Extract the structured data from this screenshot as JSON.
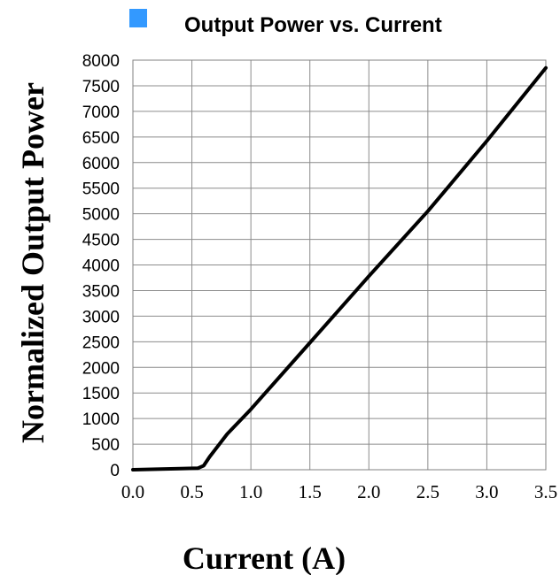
{
  "chart_data": {
    "type": "line",
    "title": "Output Power vs. Current",
    "xlabel": "Current (A)",
    "ylabel": "Normalized Output Power",
    "xlim": [
      0,
      3.5
    ],
    "ylim": [
      0,
      8000
    ],
    "x_ticks": [
      "0.0",
      "0.5",
      "1.0",
      "1.5",
      "2.0",
      "2.5",
      "3.0",
      "3.5"
    ],
    "y_ticks": [
      "0",
      "500",
      "1000",
      "1500",
      "2000",
      "2500",
      "3000",
      "3500",
      "4000",
      "4500",
      "5000",
      "5500",
      "6000",
      "6500",
      "7000",
      "7500",
      "8000"
    ],
    "grid": true,
    "legend_marker_color": "#3399ff",
    "line_color": "#000000",
    "series": [
      {
        "x": [
          0.0,
          0.2,
          0.4,
          0.55,
          0.6,
          0.65,
          0.8,
          1.0,
          1.5,
          2.0,
          2.5,
          3.0,
          3.5
        ],
        "values": [
          0,
          10,
          20,
          30,
          80,
          250,
          700,
          1180,
          2480,
          3780,
          5050,
          6420,
          7850
        ]
      }
    ]
  }
}
